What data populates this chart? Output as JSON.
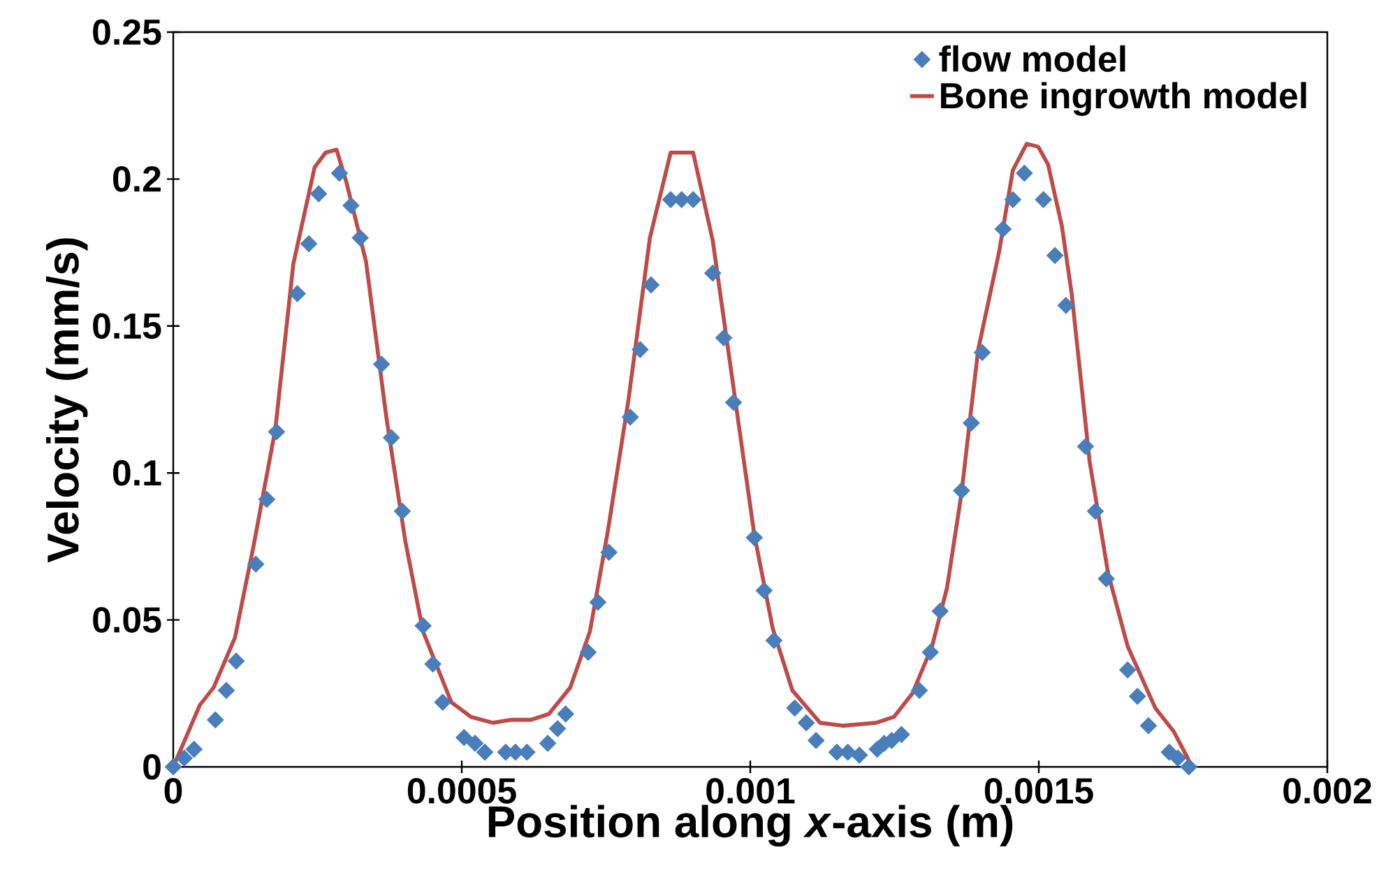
{
  "chart_data": {
    "type": "scatter",
    "xlabel": "Position along *x*-axis (m)",
    "ylabel": "Velocity (mm/s)",
    "xlim": [
      0,
      0.002
    ],
    "xticks": [
      0,
      0.0005,
      0.001,
      0.0015,
      0.002
    ],
    "ylim": [
      0,
      0.25
    ],
    "yticks": [
      0,
      0.05,
      0.1,
      0.15,
      0.2,
      0.25
    ],
    "grid": false,
    "legend": "top right",
    "series": [
      {
        "name": "flow model",
        "marker": "diamond",
        "color": "#4a7ebb",
        "x": [
          0,
          1.9e-05,
          3.6e-05,
          7.3e-05,
          9.2e-05,
          0.000109,
          0.000143,
          0.000162,
          0.000179,
          0.000215,
          0.000235,
          0.000252,
          0.000288,
          0.000308,
          0.000324,
          0.000361,
          0.000378,
          0.000397,
          0.000433,
          0.00045,
          0.000467,
          0.000504,
          0.000523,
          0.00054,
          0.000576,
          0.000593,
          0.000613,
          0.000649,
          0.000666,
          0.00068,
          0.000719,
          0.000736,
          0.000755,
          0.000792,
          0.000809,
          0.000828,
          0.000862,
          0.000881,
          0.000901,
          0.000935,
          0.000954,
          0.000971,
          0.001007,
          0.001024,
          0.001041,
          0.001077,
          0.001097,
          0.001114,
          0.00115,
          0.001169,
          0.001189,
          0.00122,
          0.001232,
          0.001245,
          0.001262,
          0.001293,
          0.001312,
          0.001329,
          0.001366,
          0.001383,
          0.001402,
          0.001438,
          0.001455,
          0.001475,
          0.001508,
          0.001528,
          0.001547,
          0.001581,
          0.001598,
          0.001617,
          0.001654,
          0.001671,
          0.00169,
          0.001726,
          0.001741,
          0.00176
        ],
        "values": [
          0,
          0.003,
          0.006,
          0.016,
          0.026,
          0.036,
          0.069,
          0.091,
          0.114,
          0.161,
          0.178,
          0.195,
          0.202,
          0.191,
          0.18,
          0.137,
          0.112,
          0.087,
          0.048,
          0.035,
          0.022,
          0.01,
          0.008,
          0.005,
          0.005,
          0.005,
          0.005,
          0.008,
          0.013,
          0.018,
          0.039,
          0.056,
          0.073,
          0.119,
          0.142,
          0.164,
          0.193,
          0.193,
          0.193,
          0.168,
          0.146,
          0.124,
          0.078,
          0.06,
          0.043,
          0.02,
          0.015,
          0.009,
          0.005,
          0.005,
          0.004,
          0.006,
          0.008,
          0.009,
          0.011,
          0.026,
          0.039,
          0.053,
          0.094,
          0.117,
          0.141,
          0.183,
          0.193,
          0.202,
          0.193,
          0.174,
          0.157,
          0.109,
          0.087,
          0.064,
          0.033,
          0.024,
          0.014,
          0.005,
          0.003,
          0
        ]
      },
      {
        "name": "Bone ingrowth model",
        "type": "line",
        "marker": "none",
        "line_style": "solid",
        "color": "#be4b48",
        "x": [
          0,
          4.6e-05,
          7e-05,
          0.000107,
          0.00014,
          0.000177,
          0.000208,
          0.000245,
          0.000264,
          0.000283,
          0.0003,
          0.000334,
          0.00037,
          0.000402,
          0.000433,
          0.000482,
          0.000516,
          0.000554,
          0.000584,
          0.00062,
          0.000651,
          0.000688,
          0.000722,
          0.000753,
          0.000789,
          0.000826,
          0.000862,
          0.000901,
          0.000935,
          0.000976,
          0.001007,
          0.001039,
          0.001073,
          0.001121,
          0.00116,
          0.001218,
          0.001249,
          0.001281,
          0.001315,
          0.001341,
          0.001366,
          0.001383,
          0.001395,
          0.001431,
          0.001455,
          0.001479,
          0.001499,
          0.001516,
          0.00154,
          0.001557,
          0.001588,
          0.00162,
          0.001654,
          0.001702,
          0.001734,
          0.001758,
          0.001765
        ],
        "values": [
          0,
          0.021,
          0.027,
          0.044,
          0.076,
          0.115,
          0.171,
          0.204,
          0.209,
          0.21,
          0.199,
          0.172,
          0.118,
          0.077,
          0.046,
          0.022,
          0.017,
          0.015,
          0.016,
          0.016,
          0.018,
          0.027,
          0.046,
          0.08,
          0.125,
          0.18,
          0.209,
          0.209,
          0.179,
          0.122,
          0.079,
          0.047,
          0.026,
          0.015,
          0.014,
          0.015,
          0.017,
          0.025,
          0.041,
          0.061,
          0.093,
          0.122,
          0.142,
          0.175,
          0.203,
          0.212,
          0.211,
          0.205,
          0.184,
          0.161,
          0.104,
          0.066,
          0.041,
          0.02,
          0.012,
          0.003,
          0
        ]
      }
    ]
  }
}
